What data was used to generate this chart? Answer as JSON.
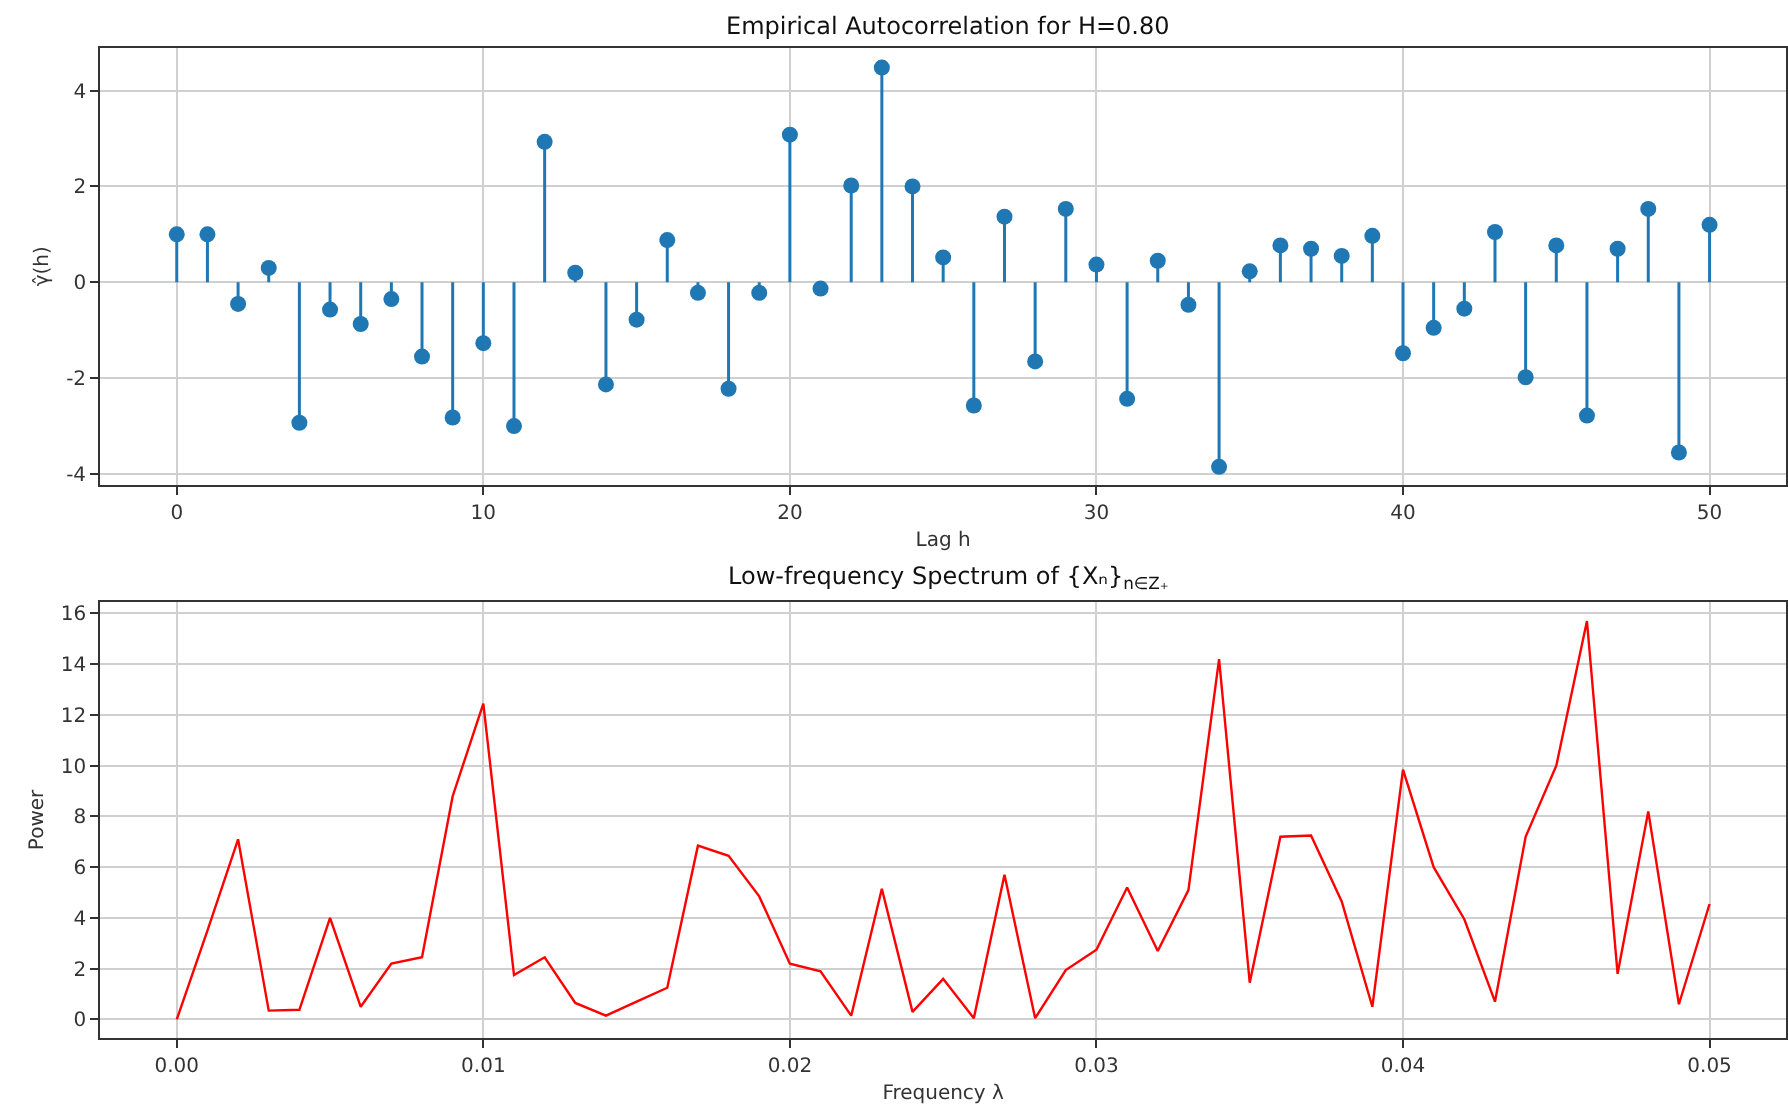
{
  "chart_data": [
    {
      "type": "lollipop",
      "title": "Empirical Autocorrelation for H=0.80",
      "xlabel": "Lag h",
      "ylabel": "γ̂(h)",
      "x": [
        0,
        1,
        2,
        3,
        4,
        5,
        6,
        7,
        8,
        9,
        10,
        11,
        12,
        13,
        14,
        15,
        16,
        17,
        18,
        19,
        20,
        21,
        22,
        23,
        24,
        25,
        26,
        27,
        28,
        29,
        30,
        31,
        32,
        33,
        34,
        35,
        36,
        37,
        38,
        39,
        40,
        41,
        42,
        43,
        44,
        45,
        46,
        47,
        48,
        49,
        50
      ],
      "values": [
        1.0,
        1.0,
        -0.45,
        0.3,
        -2.93,
        -0.57,
        -0.87,
        -0.35,
        -1.55,
        -2.82,
        -1.27,
        -3.0,
        2.93,
        0.2,
        -2.13,
        -0.78,
        0.88,
        -0.22,
        -2.22,
        -0.22,
        3.08,
        -0.13,
        2.02,
        4.48,
        2.0,
        0.52,
        -2.57,
        1.37,
        -1.65,
        1.53,
        0.37,
        -2.43,
        0.45,
        -0.47,
        -3.85,
        0.23,
        0.77,
        0.7,
        0.55,
        0.97,
        -1.48,
        -0.95,
        -0.55,
        1.05,
        -1.98,
        0.77,
        -2.78,
        0.7,
        1.53,
        -3.55,
        1.2
      ],
      "color": "#1f77b4",
      "marker": "circle",
      "grid": true,
      "xlim": [
        -2.5,
        52.5
      ],
      "xticks": [
        0,
        10,
        20,
        30,
        40,
        50
      ],
      "ylim": [
        -4.22,
        4.89
      ],
      "yticks": [
        -4,
        -2,
        0,
        2,
        4
      ]
    },
    {
      "type": "line",
      "title": "Low-frequency Spectrum of {Xₙ}$_{n∈Z₊}$",
      "xlabel": "Frequency λ",
      "ylabel": "Power",
      "x": [
        0,
        0.001,
        0.002,
        0.003,
        0.004,
        0.005,
        0.006,
        0.007,
        0.008,
        0.009,
        0.01,
        0.011,
        0.012,
        0.013,
        0.014,
        0.015,
        0.016,
        0.017,
        0.018,
        0.019,
        0.02,
        0.021,
        0.022,
        0.023,
        0.024,
        0.025,
        0.026,
        0.027,
        0.028,
        0.029,
        0.03,
        0.031,
        0.032,
        0.033,
        0.034,
        0.035,
        0.036,
        0.037,
        0.038,
        0.039,
        0.04,
        0.041,
        0.042,
        0.043,
        0.044,
        0.045,
        0.046,
        0.047,
        0.048,
        0.049,
        0.05
      ],
      "values": [
        0,
        3.5,
        7.1,
        0.35,
        0.38,
        4.0,
        0.5,
        2.2,
        2.45,
        8.8,
        12.45,
        1.75,
        2.45,
        0.65,
        0.15,
        0.7,
        1.25,
        6.85,
        6.45,
        4.85,
        2.2,
        1.9,
        0.15,
        5.15,
        0.3,
        1.6,
        0.05,
        5.7,
        0.05,
        1.95,
        2.75,
        5.2,
        2.7,
        5.1,
        14.2,
        1.45,
        7.2,
        7.25,
        4.65,
        0.5,
        9.85,
        6.0,
        3.95,
        0.7,
        7.2,
        10.0,
        15.7,
        1.8,
        8.2,
        0.6,
        4.55
      ],
      "color": "#ff0000",
      "marker": "none",
      "line_style": "solid",
      "grid": true,
      "xlim": [
        -0.0025,
        0.0525
      ],
      "xticks": [
        {
          "value": 0,
          "label": "0.00"
        },
        {
          "value": 0.01,
          "label": "0.01"
        },
        {
          "value": 0.02,
          "label": "0.02"
        },
        {
          "value": 0.03,
          "label": "0.03"
        },
        {
          "value": 0.04,
          "label": "0.04"
        },
        {
          "value": 0.05,
          "label": "0.05"
        }
      ],
      "ylim": [
        -0.74,
        16.47
      ],
      "yticks": [
        0,
        2,
        4,
        6,
        8,
        10,
        12,
        14,
        16
      ]
    }
  ]
}
